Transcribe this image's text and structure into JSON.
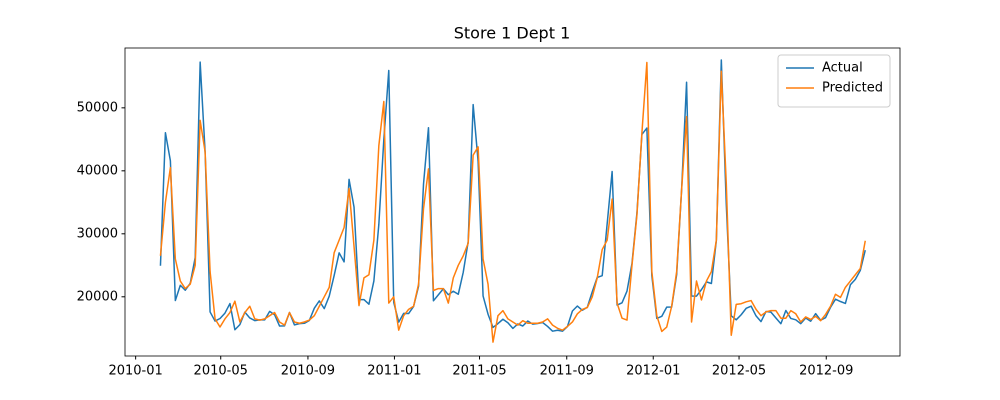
{
  "chart_data": {
    "type": "line",
    "title": "Store 1 Dept 1",
    "x": [
      "2010-02-05",
      "2010-02-12",
      "2010-02-19",
      "2010-02-26",
      "2010-03-05",
      "2010-03-12",
      "2010-03-19",
      "2010-03-26",
      "2010-04-02",
      "2010-04-09",
      "2010-04-16",
      "2010-04-23",
      "2010-04-30",
      "2010-05-07",
      "2010-05-14",
      "2010-05-21",
      "2010-05-28",
      "2010-06-04",
      "2010-06-11",
      "2010-06-18",
      "2010-06-25",
      "2010-07-02",
      "2010-07-09",
      "2010-07-16",
      "2010-07-23",
      "2010-07-30",
      "2010-08-06",
      "2010-08-13",
      "2010-08-20",
      "2010-08-27",
      "2010-09-03",
      "2010-09-10",
      "2010-09-17",
      "2010-09-24",
      "2010-10-01",
      "2010-10-08",
      "2010-10-15",
      "2010-10-22",
      "2010-10-29",
      "2010-11-05",
      "2010-11-12",
      "2010-11-19",
      "2010-11-26",
      "2010-12-03",
      "2010-12-10",
      "2010-12-17",
      "2010-12-24",
      "2010-12-31",
      "2011-01-07",
      "2011-01-14",
      "2011-01-21",
      "2011-01-28",
      "2011-02-04",
      "2011-02-11",
      "2011-02-18",
      "2011-02-25",
      "2011-03-04",
      "2011-03-11",
      "2011-03-18",
      "2011-03-25",
      "2011-04-01",
      "2011-04-08",
      "2011-04-15",
      "2011-04-22",
      "2011-04-29",
      "2011-05-06",
      "2011-05-13",
      "2011-05-20",
      "2011-05-27",
      "2011-06-03",
      "2011-06-10",
      "2011-06-17",
      "2011-06-24",
      "2011-07-01",
      "2011-07-08",
      "2011-07-15",
      "2011-07-22",
      "2011-07-29",
      "2011-08-05",
      "2011-08-12",
      "2011-08-19",
      "2011-08-26",
      "2011-09-02",
      "2011-09-09",
      "2011-09-16",
      "2011-09-23",
      "2011-09-30",
      "2011-10-07",
      "2011-10-14",
      "2011-10-21",
      "2011-10-28",
      "2011-11-04",
      "2011-11-11",
      "2011-11-18",
      "2011-11-25",
      "2011-12-02",
      "2011-12-09",
      "2011-12-16",
      "2011-12-23",
      "2011-12-30",
      "2012-01-06",
      "2012-01-13",
      "2012-01-20",
      "2012-01-27",
      "2012-02-03",
      "2012-02-10",
      "2012-02-17",
      "2012-02-24",
      "2012-03-02",
      "2012-03-09",
      "2012-03-16",
      "2012-03-23",
      "2012-03-30",
      "2012-04-06",
      "2012-04-13",
      "2012-04-20",
      "2012-04-27",
      "2012-05-04",
      "2012-05-11",
      "2012-05-18",
      "2012-05-25",
      "2012-06-01",
      "2012-06-08",
      "2012-06-15",
      "2012-06-22",
      "2012-06-29",
      "2012-07-06",
      "2012-07-13",
      "2012-07-20",
      "2012-07-27",
      "2012-08-03",
      "2012-08-10",
      "2012-08-17",
      "2012-08-24",
      "2012-08-31",
      "2012-09-07",
      "2012-09-14",
      "2012-09-21",
      "2012-09-28",
      "2012-10-05",
      "2012-10-12",
      "2012-10-19",
      "2012-10-26"
    ],
    "series": [
      {
        "name": "Actual",
        "color": "#1f77b4",
        "values": [
          24924.5,
          46039.49,
          41595.55,
          19403.54,
          21827.9,
          21043.39,
          22136.64,
          26229.21,
          57258.43,
          42960.91,
          17596.96,
          16145.35,
          16555.11,
          17413.94,
          18926.74,
          14773.04,
          15580.43,
          17558.09,
          16637.62,
          16216.27,
          16328.72,
          16333.14,
          17688.76,
          17150.84,
          15360.45,
          15381.82,
          17508.41,
          15536.4,
          15740.13,
          15793.87,
          16241.78,
          18194.74,
          19354.23,
          18122.52,
          20094.19,
          23388.03,
          26978.34,
          25543.04,
          38640.93,
          34238.88,
          19549.39,
          19552.84,
          18820.29,
          22517.56,
          31497.65,
          44912.86,
          55931.23,
          19124.58,
          15984.24,
          17359.7,
          17341.47,
          18461.18,
          21665.76,
          37887.17,
          46845.87,
          19363.83,
          20327.61,
          21280.4,
          20334.23,
          20881.1,
          20398.09,
          23873.79,
          28762.37,
          50510.31,
          41512.39,
          20138.19,
          17235.15,
          15136.78,
          15741.6,
          16434.15,
          15883.52,
          14978.09,
          15682.81,
          15363.5,
          16148.87,
          15654.85,
          15766.6,
          15922.41,
          15295.55,
          14539.79,
          14689.24,
          14537.37,
          15277.27,
          17746.68,
          18535.48,
          17859.3,
          18337.68,
          20797.58,
          23077.55,
          23351.8,
          31579.9,
          39886.06,
          18689.54,
          19050.66,
          20911.25,
          25293.49,
          33305.92,
          45773.03,
          46788.75,
          23350.88,
          16567.69,
          16894.4,
          18365.1,
          18378.16,
          23510.49,
          36988.49,
          54060.1,
          20124.22,
          20113.03,
          21140.07,
          22366.88,
          22107.7,
          28952.86,
          57592.12,
          34684.21,
          16976.19,
          16347.6,
          17147.44,
          18164.2,
          18517.79,
          16963.55,
          16065.49,
          17666.0,
          17558.82,
          16633.41,
          15722.82,
          17823.37,
          16566.18,
          16348.06,
          15731.18,
          16628.31,
          16119.92,
          17330.7,
          16286.4,
          16680.24,
          18322.37,
          19616.22,
          19251.5,
          18947.81,
          21904.47,
          22764.01,
          24185.27,
          27390.81
        ]
      },
      {
        "name": "Predicted",
        "color": "#ff7f0e",
        "values": [
          26500,
          35000,
          40500,
          26000,
          22500,
          21300,
          22000,
          25000,
          48000,
          43000,
          24000,
          16500,
          15200,
          16500,
          17500,
          19300,
          16000,
          17500,
          18500,
          16500,
          16300,
          16500,
          17000,
          17500,
          16000,
          15500,
          17500,
          16000,
          15800,
          16000,
          16300,
          17000,
          18500,
          20000,
          21500,
          27000,
          29000,
          31000,
          37200,
          28000,
          18600,
          23000,
          23500,
          29000,
          44000,
          51000,
          19000,
          20000,
          14700,
          17000,
          18000,
          18500,
          22000,
          34000,
          40300,
          21000,
          21300,
          21300,
          19000,
          23000,
          25000,
          26500,
          28500,
          42500,
          43800,
          26000,
          22000,
          12800,
          17000,
          17800,
          16500,
          16000,
          15500,
          16200,
          15800,
          15800,
          15800,
          16000,
          16500,
          15500,
          15000,
          14700,
          15300,
          16000,
          17300,
          18000,
          18300,
          20000,
          23000,
          27500,
          29000,
          35500,
          19000,
          16600,
          16300,
          25000,
          33000,
          46000,
          57200,
          24000,
          17000,
          14500,
          15200,
          18500,
          24000,
          37000,
          48600,
          16000,
          22500,
          19500,
          22500,
          24000,
          29000,
          55800,
          38000,
          13900,
          18800,
          18900,
          19200,
          19400,
          18000,
          17000,
          17600,
          17800,
          17800,
          16600,
          16600,
          17800,
          17300,
          16000,
          16800,
          16400,
          16900,
          16200,
          17200,
          18500,
          20400,
          19900,
          21500,
          22500,
          23500,
          24500,
          28900
        ]
      }
    ],
    "xlim": [
      "2009-12-17",
      "2012-12-14"
    ],
    "xticks": [
      {
        "value": "2010-01-01",
        "label": "2010-01"
      },
      {
        "value": "2010-05-01",
        "label": "2010-05"
      },
      {
        "value": "2010-09-01",
        "label": "2010-09"
      },
      {
        "value": "2011-01-01",
        "label": "2011-01"
      },
      {
        "value": "2011-05-01",
        "label": "2011-05"
      },
      {
        "value": "2011-09-01",
        "label": "2011-09"
      },
      {
        "value": "2012-01-01",
        "label": "2012-01"
      },
      {
        "value": "2012-05-01",
        "label": "2012-05"
      },
      {
        "value": "2012-09-01",
        "label": "2012-09"
      }
    ],
    "ylim": [
      10600,
      59500
    ],
    "yticks": [
      20000,
      30000,
      40000,
      50000
    ],
    "legend": "upper right",
    "grid": false
  }
}
